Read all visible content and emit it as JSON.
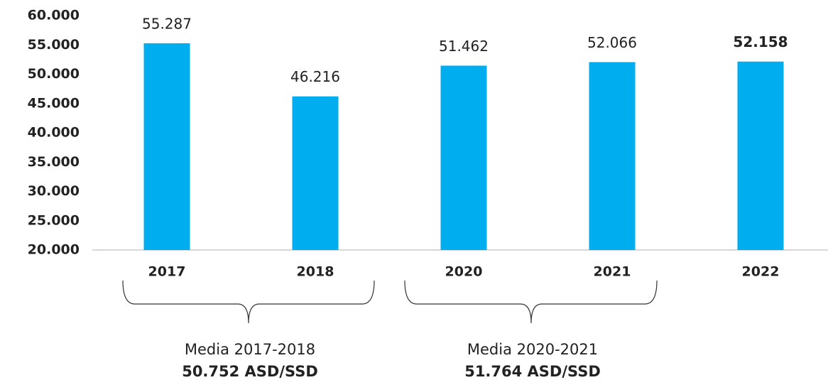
{
  "chart_data": {
    "type": "bar",
    "categories": [
      "2017",
      "2018",
      "2020",
      "2021",
      "2022"
    ],
    "values": [
      55287,
      46216,
      51462,
      52066,
      52158
    ],
    "value_labels": [
      "55.287",
      "46.216",
      "51.462",
      "52.066",
      "52.158"
    ],
    "value_label_bold": [
      false,
      false,
      false,
      false,
      true
    ],
    "color": "#00aeef",
    "ylim": [
      20000,
      60000
    ],
    "yticks": [
      {
        "value": 20000,
        "label": "20.000"
      },
      {
        "value": 25000,
        "label": "25.000"
      },
      {
        "value": 30000,
        "label": "30.000"
      },
      {
        "value": 35000,
        "label": "35.000"
      },
      {
        "value": 40000,
        "label": "40.000"
      },
      {
        "value": 45000,
        "label": "45.000"
      },
      {
        "value": 50000,
        "label": "50.000"
      },
      {
        "value": 55000,
        "label": "55.000"
      },
      {
        "value": 60000,
        "label": "60.000"
      }
    ],
    "grid": false,
    "annotations": [
      {
        "label": "Media 2017-2018",
        "value": "50.752 ASD/SSD"
      },
      {
        "label": "Media 2020-2021",
        "value": "51.764 ASD/SSD"
      }
    ]
  }
}
